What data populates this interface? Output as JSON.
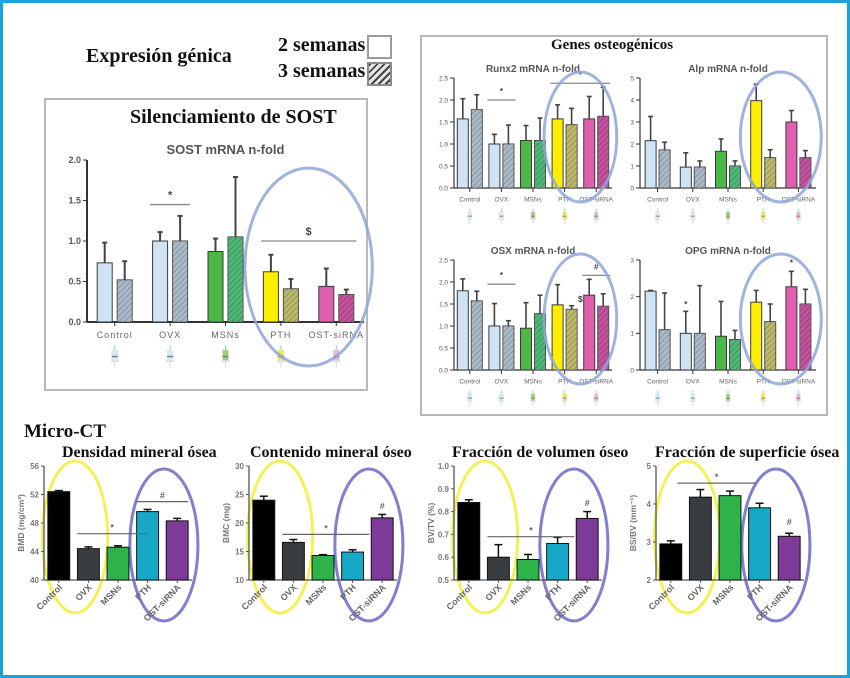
{
  "header": {
    "title": "Expresión génica",
    "legend": [
      {
        "label": "2 semanas",
        "pattern": "solid"
      },
      {
        "label": "3 semanas",
        "pattern": "hatched"
      }
    ]
  },
  "sost_panel": {
    "title": "Silenciamiento de SOST"
  },
  "osteo_panel": {
    "title": "Genes osteogénicos"
  },
  "microct": {
    "title": "Micro-CT",
    "subtitles": [
      "Densidad mineral ósea",
      "Contenido mineral óseo",
      "Fracción de volumen óseo",
      "Fracción de superficie ósea"
    ]
  },
  "groups": [
    "Control",
    "OVX",
    "MSNs",
    "PTH",
    "OST-siRNA"
  ],
  "group_colors": {
    "light": [
      "#cfe3f5",
      "#cfe3f5",
      "#4cb848",
      "#ffee00",
      "#e060b0"
    ],
    "dark": [
      "#8fa3b8",
      "#8fa3b8",
      "#13a24a",
      "#a7a236",
      "#b0187e"
    ]
  },
  "syringe_colors": [
    "#c6e6f2",
    "#c6e6f2",
    "#7cc242",
    "#f4e400",
    "#e8a0cc"
  ],
  "microct_colors": [
    "#000000",
    "#3a3d40",
    "#2db34a",
    "#17a8c8",
    "#7d3a98"
  ],
  "chart_data": [
    {
      "id": "sost",
      "type": "bar",
      "title": "SOST mRNA n-fold",
      "categories": [
        "Control",
        "OVX",
        "MSNs",
        "PTH",
        "OST-siRNA"
      ],
      "series": [
        {
          "name": "2 semanas",
          "values": [
            0.73,
            1.0,
            0.87,
            0.62,
            0.44
          ],
          "errors": [
            0.25,
            0.11,
            0.16,
            0.21,
            0.22
          ]
        },
        {
          "name": "3 semanas",
          "values": [
            0.52,
            1.0,
            1.05,
            0.41,
            0.34
          ],
          "errors": [
            0.23,
            0.31,
            0.74,
            0.12,
            0.06
          ]
        }
      ],
      "ylim": [
        0,
        2.0
      ],
      "yticks": [
        "0.0",
        "0.5",
        "1.0",
        "1.5",
        "2.0"
      ],
      "annotations": [
        {
          "text": "*",
          "from": 1,
          "to": 1,
          "y": 1.45
        },
        {
          "text": "$",
          "from": 3,
          "to": 4,
          "y": 1.0
        }
      ],
      "highlight": "PTH, OST-siRNA"
    },
    {
      "id": "runx2",
      "type": "bar",
      "title": "Runx2 mRNA n-fold",
      "categories": [
        "Control",
        "OVX",
        "MSNs",
        "PTH",
        "OST-siRNA"
      ],
      "series": [
        {
          "name": "2 semanas",
          "values": [
            1.57,
            1.0,
            1.08,
            1.57,
            1.57
          ],
          "errors": [
            0.46,
            0.22,
            0.34,
            0.32,
            0.51
          ]
        },
        {
          "name": "3 semanas",
          "values": [
            1.78,
            1.0,
            1.08,
            1.44,
            1.63
          ],
          "errors": [
            0.34,
            0.43,
            0.51,
            0.37,
            0.66
          ]
        }
      ],
      "ylim": [
        0,
        2.5
      ],
      "yticks": [
        "0.0",
        "0.5",
        "1.0",
        "1.5",
        "2.0",
        "2.5"
      ],
      "annotations": [
        {
          "text": "*",
          "from": 1,
          "to": 1,
          "y": 2.0
        },
        {
          "text": "*",
          "from": 3,
          "to": 4,
          "y": 2.38
        }
      ],
      "highlight": "PTH, OST-siRNA"
    },
    {
      "id": "alp",
      "type": "bar",
      "title": "Alp mRNA n-fold",
      "categories": [
        "Control",
        "OVX",
        "MSNs",
        "PTH",
        "OST-siRNA"
      ],
      "series": [
        {
          "name": "2 semanas",
          "values": [
            2.15,
            0.95,
            1.67,
            3.97,
            3.0
          ],
          "errors": [
            1.1,
            0.65,
            0.56,
            0.75,
            0.52
          ]
        },
        {
          "name": "3 semanas",
          "values": [
            1.73,
            0.95,
            1.0,
            1.38,
            1.38
          ],
          "errors": [
            0.35,
            0.28,
            0.23,
            0.36,
            0.32
          ]
        }
      ],
      "ylim": [
        0,
        5
      ],
      "yticks": [
        "0",
        "1",
        "2",
        "3",
        "4",
        "5"
      ],
      "annotations": [],
      "highlight": "PTH, OST-siRNA"
    },
    {
      "id": "osx",
      "type": "bar",
      "title": "OSX mRNA n-fold",
      "categories": [
        "Control",
        "OVX",
        "MSNs",
        "PTH",
        "OST-siRNA"
      ],
      "series": [
        {
          "name": "2 semanas",
          "values": [
            1.8,
            1.0,
            0.95,
            1.48,
            1.7
          ],
          "errors": [
            0.27,
            0.51,
            0.58,
            0.46,
            0.36
          ]
        },
        {
          "name": "3 semanas",
          "values": [
            1.57,
            1.0,
            1.28,
            1.38,
            1.45
          ],
          "errors": [
            0.22,
            0.12,
            0.42,
            0.08,
            0.28
          ]
        }
      ],
      "ylim": [
        0,
        2.5
      ],
      "yticks": [
        "0.0",
        "0.5",
        "1.0",
        "1.5",
        "2.0",
        "2.5"
      ],
      "annotations": [
        {
          "text": "*",
          "from": 1,
          "to": 1,
          "y": 1.95
        },
        {
          "text": "$",
          "from": 3.5,
          "to": 3.5,
          "y": 1.55
        },
        {
          "text": "#",
          "from": 4,
          "to": 4,
          "y": 2.15
        }
      ],
      "highlight": "PTH, OST-siRNA"
    },
    {
      "id": "opg",
      "type": "bar",
      "title": "OPG mRNA n-fold",
      "categories": [
        "Control",
        "OVX",
        "MSNs",
        "PTH",
        "OST-siRNA"
      ],
      "series": [
        {
          "name": "2 semanas",
          "values": [
            2.15,
            1.0,
            0.92,
            1.85,
            2.27
          ],
          "errors": [
            0.02,
            0.6,
            0.95,
            0.32,
            0.42
          ]
        },
        {
          "name": "3 semanas",
          "values": [
            1.1,
            1.0,
            0.83,
            1.32,
            1.8
          ],
          "errors": [
            1.0,
            1.3,
            0.25,
            0.48,
            0.4
          ]
        }
      ],
      "ylim": [
        0,
        3
      ],
      "yticks": [
        "0",
        "1",
        "2",
        "3"
      ],
      "annotations": [
        {
          "text": "*",
          "from": 1,
          "to": 1,
          "y": 1.72,
          "series": 0
        },
        {
          "text": "*",
          "from": 4,
          "to": 4,
          "y": 2.85,
          "series": 0
        }
      ],
      "highlight": "PTH, OST-siRNA"
    },
    {
      "id": "bmd",
      "type": "bar",
      "title": "Densidad mineral ósea",
      "ylabel": "BMD (mg/cm³)",
      "categories": [
        "Control",
        "OVX",
        "MSNs",
        "PTH",
        "OST-siRNA"
      ],
      "values": [
        52.4,
        44.4,
        44.6,
        49.6,
        48.3
      ],
      "errors": [
        0.15,
        0.25,
        0.2,
        0.3,
        0.35
      ],
      "ylim": [
        40,
        56
      ],
      "yticks": [
        "40",
        "44",
        "48",
        "52",
        "56"
      ],
      "annotations": [
        {
          "text": "*",
          "from": 1,
          "to": 2.6,
          "y": 46.5
        },
        {
          "text": "#",
          "from": 3,
          "to": 4,
          "y": 51.0
        }
      ],
      "highlight_yellow": "Control, OVX",
      "highlight_blue": "PTH, OST-siRNA"
    },
    {
      "id": "bmc",
      "type": "bar",
      "title": "Contenido mineral óseo",
      "ylabel": "BMC (mg)",
      "categories": [
        "Control",
        "OVX",
        "MSNs",
        "PTH",
        "OST-siRNA"
      ],
      "values": [
        24.0,
        16.6,
        14.3,
        14.9,
        20.9
      ],
      "errors": [
        0.7,
        0.5,
        0.15,
        0.4,
        0.6
      ],
      "ylim": [
        10,
        30
      ],
      "yticks": [
        "10",
        "15",
        "20",
        "25",
        "30"
      ],
      "annotations": [
        {
          "text": "*",
          "from": 1,
          "to": 3.2,
          "y": 18.0
        },
        {
          "text": "#",
          "from": 4,
          "to": 4,
          "y": 22.5
        }
      ],
      "highlight_yellow": "Control, OVX",
      "highlight_blue": "PTH, OST-siRNA"
    },
    {
      "id": "bvtv",
      "type": "bar",
      "title": "Fracción de volumen óseo",
      "ylabel": "BV/TV (%)",
      "categories": [
        "Control",
        "OVX",
        "MSNs",
        "PTH",
        "OST-siRNA"
      ],
      "values": [
        0.84,
        0.6,
        0.59,
        0.66,
        0.77
      ],
      "errors": [
        0.012,
        0.055,
        0.022,
        0.027,
        0.03
      ],
      "ylim": [
        0.5,
        1.0
      ],
      "yticks": [
        "0.5",
        "0.6",
        "0.7",
        "0.8",
        "0.9",
        "1.0"
      ],
      "annotations": [
        {
          "text": "*",
          "from": 1,
          "to": 3.2,
          "y": 0.69
        },
        {
          "text": "#",
          "from": 4,
          "to": 4,
          "y": 0.825
        }
      ],
      "highlight_yellow": "Control, OVX",
      "highlight_blue": "PTH, OST-siRNA"
    },
    {
      "id": "bsbv",
      "type": "bar",
      "title": "Fracción de superficie ósea",
      "ylabel": "BS/BV (mm⁻¹)",
      "categories": [
        "Control",
        "OVX",
        "MSNs",
        "PTH",
        "OST-siRNA"
      ],
      "values": [
        2.95,
        4.18,
        4.22,
        3.9,
        3.15
      ],
      "errors": [
        0.08,
        0.2,
        0.12,
        0.12,
        0.08
      ],
      "ylim": [
        2,
        5
      ],
      "yticks": [
        "2",
        "3",
        "4",
        "5"
      ],
      "annotations": [
        {
          "text": "*",
          "from": 0.6,
          "to": 2.5,
          "y": 4.55
        },
        {
          "text": "#",
          "from": 4,
          "to": 4,
          "y": 3.45
        }
      ],
      "highlight_yellow": "Control, OVX",
      "highlight_blue": "PTH, OST-siRNA"
    }
  ]
}
